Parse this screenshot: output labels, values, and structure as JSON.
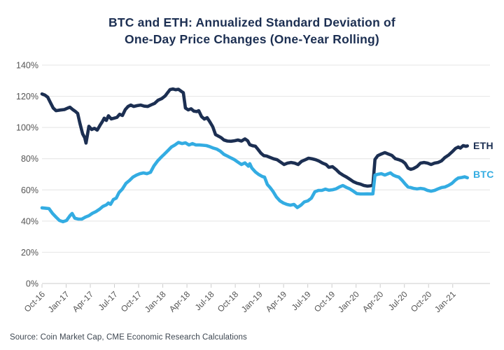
{
  "title": {
    "line1": "BTC and ETH: Annualized Standard Deviation of",
    "line2": "One-Day Price Changes (One-Year Rolling)"
  },
  "source": "Source: Coin Market Cap, CME Economic Research Calculations",
  "colors": {
    "eth_line": "#1C2F52",
    "btc_line": "#33ACE2",
    "title_text": "#1C2F52",
    "axis_text": "#555555",
    "source_text": "#3D4650",
    "gridline": "#E4E4E4",
    "axis_line": "#CCCCCC"
  },
  "chart_data": {
    "type": "line",
    "title": "BTC and ETH: Annualized Standard Deviation of One-Day Price Changes (One-Year Rolling)",
    "xlabel": "",
    "ylabel": "",
    "grid": "horizontal",
    "legend_position": "right-of-line-ends",
    "yticks_percent": [
      0,
      20,
      40,
      60,
      80,
      100,
      120,
      140
    ],
    "ylim_percent": [
      0,
      140
    ],
    "x_tick_labels": [
      "Oct-16",
      "Jan-17",
      "Apr-17",
      "Jul-17",
      "Oct-17",
      "Jan-18",
      "Apr-18",
      "Jul-18",
      "Oct-18",
      "Jan-19",
      "Apr-19",
      "Jul-19",
      "Oct-19",
      "Jan-20",
      "Apr-20",
      "Jul-20",
      "Oct-20",
      "Jan-21"
    ],
    "x_tick_months": [
      0,
      3,
      6,
      9,
      12,
      15,
      18,
      21,
      24,
      27,
      30,
      33,
      36,
      39,
      42,
      45,
      48,
      51
    ],
    "xlim_months": [
      0,
      55.6
    ],
    "series": [
      {
        "name": "ETH",
        "color_key": "eth_line",
        "points": [
          [
            0,
            121.5
          ],
          [
            0.35,
            120.8
          ],
          [
            0.7,
            119.5
          ],
          [
            1.04,
            116
          ],
          [
            1.39,
            112.5
          ],
          [
            1.74,
            110.8
          ],
          [
            2.26,
            111.2
          ],
          [
            2.78,
            111.5
          ],
          [
            3.21,
            112.5
          ],
          [
            3.48,
            113
          ],
          [
            3.82,
            111.5
          ],
          [
            4.17,
            110.2
          ],
          [
            4.43,
            109
          ],
          [
            4.69,
            103
          ],
          [
            5.04,
            96
          ],
          [
            5.3,
            93.5
          ],
          [
            5.47,
            90
          ],
          [
            5.82,
            100.8
          ],
          [
            6.17,
            98.7
          ],
          [
            6.52,
            99.5
          ],
          [
            6.86,
            98.3
          ],
          [
            7.21,
            101.5
          ],
          [
            7.47,
            103.5
          ],
          [
            7.73,
            106
          ],
          [
            7.99,
            104.5
          ],
          [
            8.25,
            107.5
          ],
          [
            8.6,
            105.5
          ],
          [
            8.95,
            106
          ],
          [
            9.3,
            106.5
          ],
          [
            9.64,
            108.5
          ],
          [
            9.99,
            107.7
          ],
          [
            10.34,
            111.5
          ],
          [
            10.69,
            113.5
          ],
          [
            11.03,
            114.4
          ],
          [
            11.38,
            113.5
          ],
          [
            11.82,
            114
          ],
          [
            12.25,
            114.4
          ],
          [
            12.68,
            113.7
          ],
          [
            13.12,
            113.5
          ],
          [
            13.55,
            114.5
          ],
          [
            13.99,
            115.5
          ],
          [
            14.42,
            117.5
          ],
          [
            14.86,
            118.5
          ],
          [
            15.29,
            120.2
          ],
          [
            15.55,
            122
          ],
          [
            15.9,
            124.3
          ],
          [
            16.25,
            124.7
          ],
          [
            16.59,
            124.2
          ],
          [
            16.94,
            124.5
          ],
          [
            17.29,
            123.2
          ],
          [
            17.55,
            122.3
          ],
          [
            17.81,
            112.5
          ],
          [
            18.16,
            111.3
          ],
          [
            18.51,
            112
          ],
          [
            18.85,
            110.5
          ],
          [
            19.2,
            110.2
          ],
          [
            19.46,
            110.8
          ],
          [
            19.81,
            107
          ],
          [
            20.16,
            105.4
          ],
          [
            20.5,
            106.3
          ],
          [
            20.85,
            103.5
          ],
          [
            21.2,
            100.5
          ],
          [
            21.55,
            95.5
          ],
          [
            21.89,
            94.5
          ],
          [
            22.24,
            93.5
          ],
          [
            22.59,
            92
          ],
          [
            23.02,
            91.3
          ],
          [
            23.46,
            91.2
          ],
          [
            23.89,
            91.5
          ],
          [
            24.33,
            92
          ],
          [
            24.76,
            91.3
          ],
          [
            25.2,
            92.7
          ],
          [
            25.54,
            91.5
          ],
          [
            25.8,
            89
          ],
          [
            26.15,
            88.3
          ],
          [
            26.5,
            88
          ],
          [
            26.85,
            85.8
          ],
          [
            27.19,
            83.5
          ],
          [
            27.54,
            82
          ],
          [
            27.89,
            81.7
          ],
          [
            28.32,
            80.8
          ],
          [
            28.76,
            79.9
          ],
          [
            29.19,
            79.4
          ],
          [
            29.63,
            77.8
          ],
          [
            30.06,
            76.3
          ],
          [
            30.49,
            77.2
          ],
          [
            30.93,
            77.6
          ],
          [
            31.36,
            77.2
          ],
          [
            31.8,
            76.3
          ],
          [
            32.23,
            78.3
          ],
          [
            32.67,
            79.3
          ],
          [
            33.1,
            80.3
          ],
          [
            33.54,
            79.9
          ],
          [
            33.97,
            79.4
          ],
          [
            34.4,
            78.5
          ],
          [
            34.84,
            77.2
          ],
          [
            35.27,
            76.3
          ],
          [
            35.62,
            74.5
          ],
          [
            36.06,
            74.9
          ],
          [
            36.49,
            73.2
          ],
          [
            36.92,
            71
          ],
          [
            37.36,
            69.5
          ],
          [
            37.79,
            68.3
          ],
          [
            38.23,
            66.8
          ],
          [
            38.66,
            65.3
          ],
          [
            39.1,
            64.3
          ],
          [
            39.53,
            63.7
          ],
          [
            39.97,
            62.8
          ],
          [
            40.4,
            62.4
          ],
          [
            40.75,
            62.6
          ],
          [
            41.09,
            63
          ],
          [
            41.35,
            79.5
          ],
          [
            41.7,
            82
          ],
          [
            42.14,
            83
          ],
          [
            42.57,
            83.9
          ],
          [
            43,
            83
          ],
          [
            43.44,
            82.1
          ],
          [
            43.87,
            80
          ],
          [
            44.31,
            79.4
          ],
          [
            44.74,
            78.5
          ],
          [
            45.09,
            77
          ],
          [
            45.44,
            74
          ],
          [
            45.79,
            73.2
          ],
          [
            46.13,
            73.7
          ],
          [
            46.57,
            75
          ],
          [
            47,
            77.2
          ],
          [
            47.44,
            77.6
          ],
          [
            47.87,
            77.2
          ],
          [
            48.31,
            76.3
          ],
          [
            48.74,
            77.2
          ],
          [
            49.17,
            77.6
          ],
          [
            49.61,
            78.6
          ],
          [
            50.04,
            80.8
          ],
          [
            50.48,
            82.3
          ],
          [
            50.91,
            84.3
          ],
          [
            51.35,
            86.6
          ],
          [
            51.69,
            87.5
          ],
          [
            51.95,
            86.8
          ],
          [
            52.3,
            88.4
          ],
          [
            52.65,
            87.9
          ],
          [
            52.82,
            88.2
          ]
        ]
      },
      {
        "name": "BTC",
        "color_key": "btc_line",
        "points": [
          [
            0,
            48.5
          ],
          [
            0.43,
            48.3
          ],
          [
            0.87,
            48
          ],
          [
            1.3,
            44.9
          ],
          [
            1.74,
            42.6
          ],
          [
            2.17,
            40.4
          ],
          [
            2.61,
            39.6
          ],
          [
            3.04,
            40.4
          ],
          [
            3.48,
            43.5
          ],
          [
            3.74,
            44.9
          ],
          [
            4.08,
            41.8
          ],
          [
            4.52,
            41.3
          ],
          [
            4.95,
            41.3
          ],
          [
            5.39,
            42.6
          ],
          [
            5.82,
            43.5
          ],
          [
            6.26,
            45
          ],
          [
            6.69,
            46.1
          ],
          [
            7.12,
            47.5
          ],
          [
            7.56,
            49.4
          ],
          [
            7.99,
            50.4
          ],
          [
            8.25,
            51.6
          ],
          [
            8.51,
            50.7
          ],
          [
            8.86,
            53.8
          ],
          [
            9.21,
            54.7
          ],
          [
            9.56,
            58.3
          ],
          [
            9.99,
            60.6
          ],
          [
            10.43,
            64.2
          ],
          [
            10.86,
            66
          ],
          [
            11.29,
            68.2
          ],
          [
            11.73,
            69.5
          ],
          [
            12.16,
            70.4
          ],
          [
            12.6,
            70.9
          ],
          [
            13.03,
            70.4
          ],
          [
            13.47,
            71.3
          ],
          [
            13.9,
            75.4
          ],
          [
            14.34,
            78.5
          ],
          [
            14.77,
            80.8
          ],
          [
            15.21,
            83
          ],
          [
            15.64,
            85.2
          ],
          [
            16.07,
            87.5
          ],
          [
            16.51,
            88.8
          ],
          [
            16.94,
            90.4
          ],
          [
            17.38,
            89.7
          ],
          [
            17.81,
            90.2
          ],
          [
            18.25,
            88.8
          ],
          [
            18.68,
            89.7
          ],
          [
            19.11,
            88.8
          ],
          [
            19.55,
            88.8
          ],
          [
            19.98,
            88.6
          ],
          [
            20.42,
            88.4
          ],
          [
            20.85,
            87.7
          ],
          [
            21.29,
            86.8
          ],
          [
            21.72,
            86.1
          ],
          [
            22.15,
            84.8
          ],
          [
            22.59,
            82.8
          ],
          [
            23.02,
            81.7
          ],
          [
            23.46,
            80.5
          ],
          [
            23.89,
            79.4
          ],
          [
            24.33,
            77.8
          ],
          [
            24.76,
            76.3
          ],
          [
            25.2,
            77.3
          ],
          [
            25.63,
            75.2
          ],
          [
            25.8,
            76.8
          ],
          [
            26.06,
            74
          ],
          [
            26.5,
            71.5
          ],
          [
            26.93,
            69.8
          ],
          [
            27.37,
            68.5
          ],
          [
            27.63,
            68.2
          ],
          [
            27.98,
            63.5
          ],
          [
            28.32,
            61.5
          ],
          [
            28.67,
            59.2
          ],
          [
            29.1,
            55.5
          ],
          [
            29.54,
            53
          ],
          [
            29.97,
            51.6
          ],
          [
            30.41,
            50.7
          ],
          [
            30.84,
            50.2
          ],
          [
            31.28,
            50.7
          ],
          [
            31.71,
            48.7
          ],
          [
            32.15,
            50.2
          ],
          [
            32.58,
            52.3
          ],
          [
            33.01,
            53
          ],
          [
            33.45,
            54.7
          ],
          [
            33.88,
            58.8
          ],
          [
            34.32,
            59.7
          ],
          [
            34.75,
            59.7
          ],
          [
            35.19,
            60.5
          ],
          [
            35.62,
            59.8
          ],
          [
            36.06,
            60.1
          ],
          [
            36.49,
            60.6
          ],
          [
            36.92,
            61.9
          ],
          [
            37.36,
            62.8
          ],
          [
            37.79,
            61.6
          ],
          [
            38.23,
            60.6
          ],
          [
            38.66,
            59.2
          ],
          [
            39.1,
            57.6
          ],
          [
            39.53,
            57.4
          ],
          [
            39.97,
            57.4
          ],
          [
            40.4,
            57.5
          ],
          [
            40.83,
            57.4
          ],
          [
            41.09,
            57.5
          ],
          [
            41.35,
            69.5
          ],
          [
            41.7,
            70
          ],
          [
            42.14,
            70.4
          ],
          [
            42.57,
            69.5
          ],
          [
            43,
            70.4
          ],
          [
            43.26,
            70.9
          ],
          [
            43.61,
            69.5
          ],
          [
            43.96,
            68.7
          ],
          [
            44.31,
            68.2
          ],
          [
            44.74,
            66
          ],
          [
            45.09,
            63.8
          ],
          [
            45.44,
            61.9
          ],
          [
            45.79,
            61.5
          ],
          [
            46.13,
            61
          ],
          [
            46.57,
            60.6
          ],
          [
            47,
            61
          ],
          [
            47.44,
            60.6
          ],
          [
            47.87,
            59.7
          ],
          [
            48.31,
            59.2
          ],
          [
            48.74,
            59.7
          ],
          [
            49.17,
            60.6
          ],
          [
            49.61,
            61.5
          ],
          [
            50.04,
            61.9
          ],
          [
            50.48,
            62.9
          ],
          [
            50.91,
            64.2
          ],
          [
            51.35,
            66.4
          ],
          [
            51.69,
            67.6
          ],
          [
            52.13,
            68
          ],
          [
            52.47,
            68.4
          ],
          [
            52.82,
            67.8
          ]
        ]
      }
    ]
  }
}
